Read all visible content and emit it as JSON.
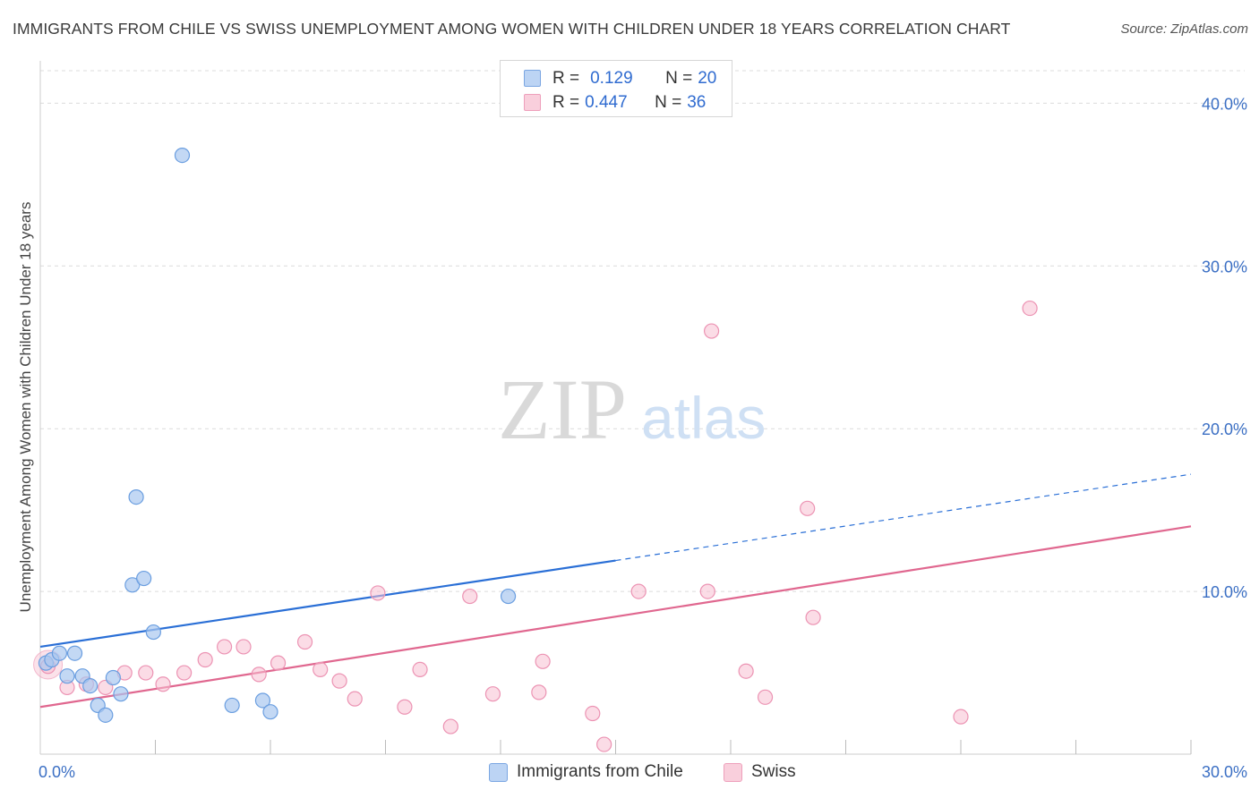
{
  "title": "IMMIGRANTS FROM CHILE VS SWISS UNEMPLOYMENT AMONG WOMEN WITH CHILDREN UNDER 18 YEARS CORRELATION CHART",
  "source": "Source: ZipAtlas.com",
  "watermark": {
    "zip": "ZIP",
    "atlas": "atlas"
  },
  "legend": {
    "r_label": "R =",
    "n_label": "N =",
    "series1": {
      "r": "0.129",
      "n": "20"
    },
    "series2": {
      "r": "0.447",
      "n": "36"
    }
  },
  "colors": {
    "chile_fill": "#a9c8f0",
    "chile_stroke": "#6a9ee0",
    "chile_line": "#2a6fd6",
    "swiss_fill": "#f7bfd1",
    "swiss_stroke": "#ec93b3",
    "swiss_line": "#e0678f",
    "grid": "#dcdcdc",
    "tick_text": "#3b6fc4"
  },
  "chart_data": {
    "type": "scatter",
    "title": "IMMIGRANTS FROM CHILE VS SWISS UNEMPLOYMENT AMONG WOMEN WITH CHILDREN UNDER 18 YEARS CORRELATION CHART",
    "xlabel": "",
    "ylabel": "Unemployment Among Women with Children Under 18 years",
    "xlim": [
      0,
      30
    ],
    "ylim": [
      0,
      42
    ],
    "x_tick_labels": [
      "0.0%",
      "30.0%"
    ],
    "y_ticks": [
      10,
      20,
      30,
      40
    ],
    "y_tick_labels": [
      "10.0%",
      "20.0%",
      "30.0%",
      "40.0%"
    ],
    "series": [
      {
        "name": "Immigrants from Chile",
        "points": [
          [
            0.15,
            5.6
          ],
          [
            0.3,
            5.8
          ],
          [
            0.5,
            6.2
          ],
          [
            0.7,
            4.8
          ],
          [
            0.9,
            6.2
          ],
          [
            1.1,
            4.8
          ],
          [
            1.3,
            4.2
          ],
          [
            1.5,
            3.0
          ],
          [
            1.7,
            2.4
          ],
          [
            1.9,
            4.7
          ],
          [
            2.1,
            3.7
          ],
          [
            2.4,
            10.4
          ],
          [
            2.5,
            15.8
          ],
          [
            2.7,
            10.8
          ],
          [
            2.95,
            7.5
          ],
          [
            3.7,
            36.8
          ],
          [
            5.0,
            3.0
          ],
          [
            5.8,
            3.3
          ],
          [
            6.0,
            2.6
          ],
          [
            12.2,
            9.7
          ]
        ],
        "trend": {
          "x0": 0,
          "y0": 6.6,
          "x1": 15,
          "y1": 11.9,
          "dash_to_x": 30,
          "dash_to_y": 17.2
        }
      },
      {
        "name": "Swiss",
        "points": [
          [
            0.2,
            5.4
          ],
          [
            0.7,
            4.1
          ],
          [
            1.2,
            4.3
          ],
          [
            1.7,
            4.1
          ],
          [
            2.2,
            5.0
          ],
          [
            2.75,
            5.0
          ],
          [
            3.2,
            4.3
          ],
          [
            3.75,
            5.0
          ],
          [
            4.3,
            5.8
          ],
          [
            4.8,
            6.6
          ],
          [
            5.3,
            6.6
          ],
          [
            5.7,
            4.9
          ],
          [
            6.2,
            5.6
          ],
          [
            6.9,
            6.9
          ],
          [
            7.3,
            5.2
          ],
          [
            7.8,
            4.5
          ],
          [
            8.2,
            3.4
          ],
          [
            8.8,
            9.9
          ],
          [
            9.5,
            2.9
          ],
          [
            9.9,
            5.2
          ],
          [
            10.7,
            1.7
          ],
          [
            11.2,
            9.7
          ],
          [
            11.8,
            3.7
          ],
          [
            13.0,
            3.8
          ],
          [
            13.1,
            5.7
          ],
          [
            14.4,
            2.5
          ],
          [
            14.7,
            0.6
          ],
          [
            15.6,
            10.0
          ],
          [
            17.4,
            10.0
          ],
          [
            17.5,
            26.0
          ],
          [
            18.4,
            5.1
          ],
          [
            18.9,
            3.5
          ],
          [
            20.0,
            15.1
          ],
          [
            20.15,
            8.4
          ],
          [
            24.0,
            2.3
          ],
          [
            25.8,
            27.4
          ]
        ],
        "trend": {
          "x0": 0,
          "y0": 2.9,
          "x1": 30,
          "y1": 14.0
        }
      }
    ]
  },
  "bottom_legend": {
    "series1": "Immigrants from Chile",
    "series2": "Swiss"
  }
}
